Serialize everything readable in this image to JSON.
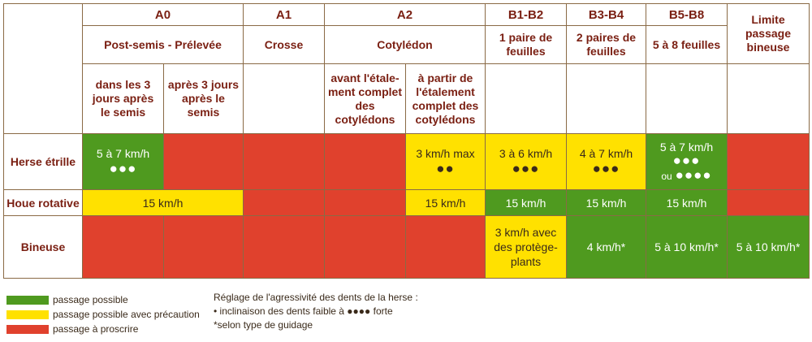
{
  "stages": {
    "a0": "A0",
    "a1": "A1",
    "a2": "A2",
    "b1b2": "B1-B2",
    "b3b4": "B3-B4",
    "b5b8": "B5-B8",
    "limite": "Limite passage bineuse"
  },
  "phases": {
    "postsemis": "Post-semis - Prélevée",
    "crosse": "Crosse",
    "cotyledon": "Cotylédon",
    "b1b2": "1 paire de feuilles",
    "b3b4": "2 paires de feuilles",
    "b5b8": "5 à 8 feuilles"
  },
  "subphases": {
    "a0_1": "dans les 3 jours après le semis",
    "a0_2": "après 3 jours après le semis",
    "a2_1": "avant l'étale-ment complet des cotylédons",
    "a2_2": "à partir de l'étalement complet des cotylédons"
  },
  "rows": {
    "herse": "Herse étrille",
    "houe": "Houe rotative",
    "bineuse": "Bineuse"
  },
  "cells": {
    "herse_a0_1": "5 à 7 km/h",
    "herse_a0_1_dots": "●●●",
    "herse_a2_2": "3 km/h max",
    "herse_a2_2_dots": "●●",
    "herse_b1b2": "3 à 6 km/h",
    "herse_b1b2_dots": "●●●",
    "herse_b3b4": "4 à 7 km/h",
    "herse_b3b4_dots": "●●●",
    "herse_b5b8": "5 à 7 km/h",
    "herse_b5b8_dots": "●●●",
    "herse_b5b8_ou": "ou",
    "herse_b5b8_dots2": "●●●●",
    "houe_a0": "15 km/h",
    "houe_a2_2": "15 km/h",
    "houe_b1b2": "15 km/h",
    "houe_b3b4": "15 km/h",
    "houe_b5b8": "15 km/h",
    "bineuse_b1b2": "3 km/h avec des protège-plants",
    "bineuse_b3b4": "4 km/h*",
    "bineuse_b5b8": "5 à 10 km/h*",
    "bineuse_limite": "5 à 10 km/h*"
  },
  "legend": {
    "green": "passage possible",
    "yellow": "passage possible avec précaution",
    "red": "passage à proscrire"
  },
  "note": {
    "line1": "Réglage de l'agressivité des dents de la herse :",
    "line2": "• inclinaison des dents faible à ●●●● forte",
    "line3": "*selon type de guidage"
  },
  "colors": {
    "green": "#4f9a1f",
    "yellow": "#ffe100",
    "red": "#e0412d",
    "header_text": "#7a1f12"
  }
}
